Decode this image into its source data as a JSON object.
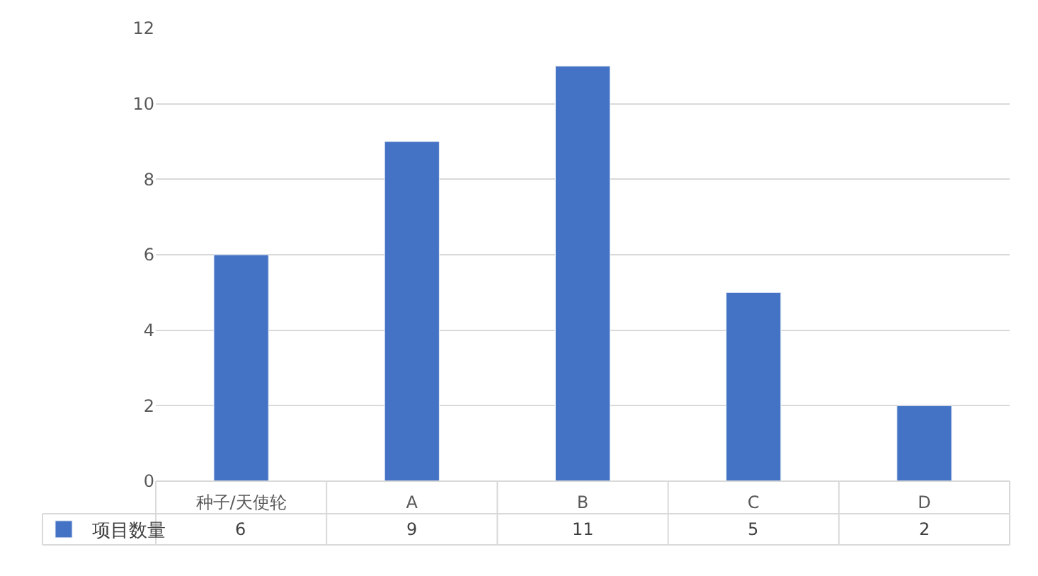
{
  "chart_data": {
    "type": "bar",
    "categories": [
      "种子/天使轮",
      "A",
      "B",
      "C",
      "D"
    ],
    "series": [
      {
        "name": "项目数量",
        "color": "#4472c4",
        "values": [
          6,
          9,
          11,
          5,
          2
        ]
      }
    ],
    "ylim": [
      0,
      12
    ],
    "yticks": [
      0,
      2,
      4,
      6,
      8,
      10,
      12
    ],
    "grid": "y",
    "legend": "bottom left",
    "data_labels": true
  }
}
